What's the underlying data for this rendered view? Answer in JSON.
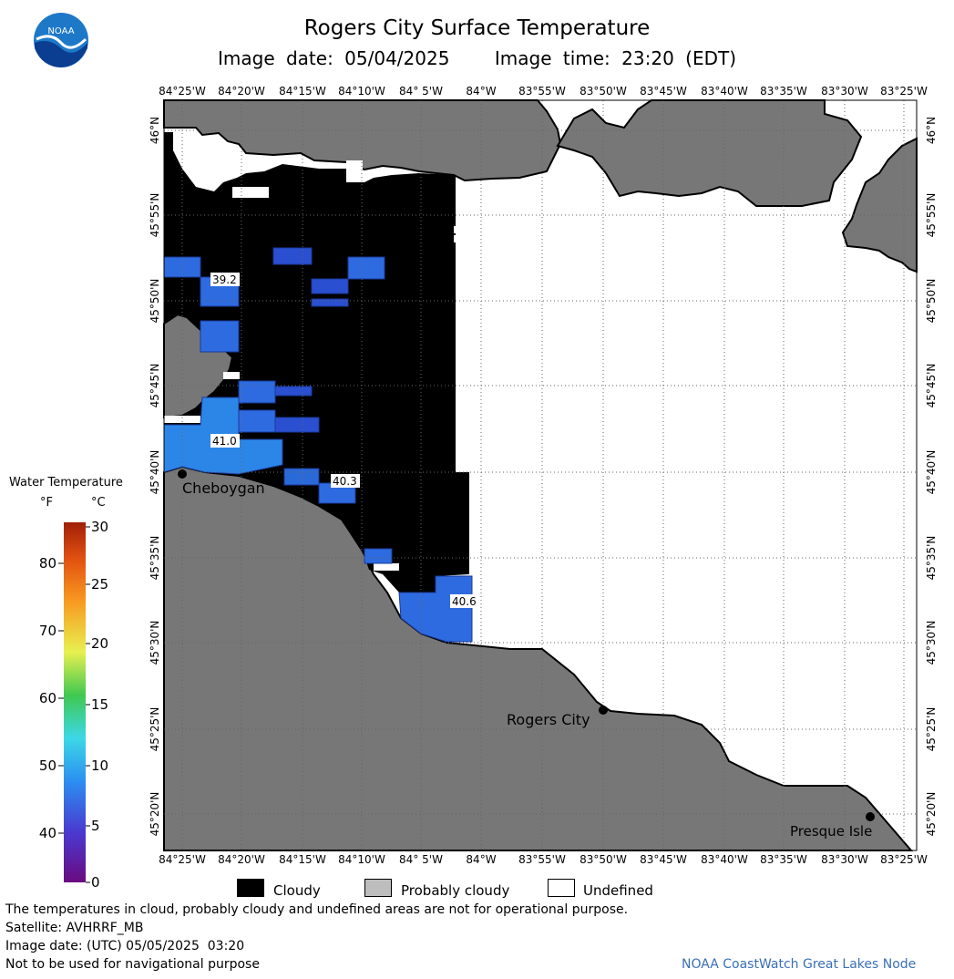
{
  "header": {
    "logo_text": "NOAA",
    "title": "Rogers City Surface Temperature",
    "subtitle": "Image date: 05/04/2025    Image time: 23:20 (EDT)"
  },
  "map": {
    "lon_labels": [
      "84°25'W",
      "84°20'W",
      "84°15'W",
      "84°10'W",
      "84° 5'W",
      "84°W",
      "83°55'W",
      "83°50'W",
      "83°45'W",
      "83°40'W",
      "83°35'W",
      "83°30'W",
      "83°25'W"
    ],
    "lat_labels": [
      "46°N",
      "45°55'N",
      "45°50'N",
      "45°45'N",
      "45°40'N",
      "45°35'N",
      "45°30'N",
      "45°25'N",
      "45°20'N"
    ],
    "places": [
      {
        "name": "Cheboygan"
      },
      {
        "name": "Rogers City"
      },
      {
        "name": "Presque Isle"
      }
    ],
    "temp_labels": [
      "39.2",
      "41.0",
      "40.3",
      "40.6"
    ],
    "colors": {
      "land": "#777777",
      "cloudy": "#000000",
      "water_blue": "#2e6be0",
      "water_dark_blue": "#2a4fd0",
      "water_light_blue": "#2c86e8",
      "undefined": "#ffffff"
    }
  },
  "colorbar": {
    "title": "Water Temperature",
    "unit_f": "°F",
    "unit_c": "°C",
    "f_ticks": [
      "80",
      "70",
      "60",
      "50",
      "40"
    ],
    "c_ticks": [
      "30",
      "25",
      "20",
      "15",
      "10",
      "5",
      "0"
    ]
  },
  "legend": {
    "cloudy": "Cloudy",
    "probably_cloudy": "Probably cloudy",
    "undefined": "Undefined"
  },
  "footer": {
    "line1": "The temperatures in cloud, probably cloudy and undefined areas are not for operational purpose.",
    "line2": "Satellite: AVHRRF_MB",
    "line3": "Image date: (UTC) 05/05/2025  03:20",
    "line4": "Not to be used for navigational purpose",
    "credit": "NOAA CoastWatch Great Lakes Node"
  }
}
